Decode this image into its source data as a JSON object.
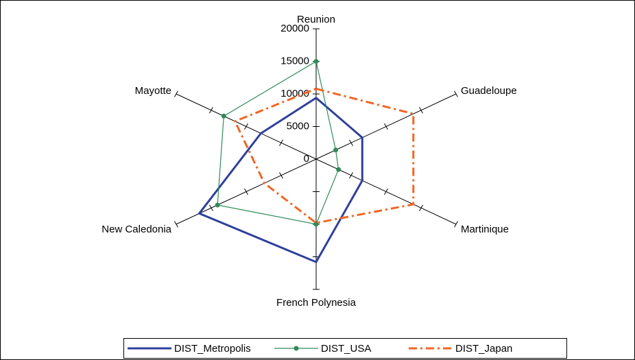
{
  "chart_data": {
    "type": "radar",
    "categories": [
      "Reunion",
      "Guadeloupe",
      "Martinique",
      "French Polynesia",
      "New Caledonia",
      "Mayotte"
    ],
    "series": [
      {
        "name": "DIST_Metropolis",
        "color": "#2e3f9c",
        "values": [
          9400,
          6600,
          6600,
          15800,
          16700,
          7900
        ]
      },
      {
        "name": "DIST_USA",
        "color": "#2e8b57",
        "values": [
          15000,
          2800,
          3200,
          10000,
          14100,
          13200
        ]
      },
      {
        "name": "DIST_Japan",
        "color": "#f26522",
        "values": [
          10800,
          13900,
          13900,
          9800,
          7400,
          11600
        ]
      }
    ],
    "rlim": [
      0,
      20000
    ],
    "rticks": [
      0,
      5000,
      10000,
      15000,
      20000
    ]
  }
}
